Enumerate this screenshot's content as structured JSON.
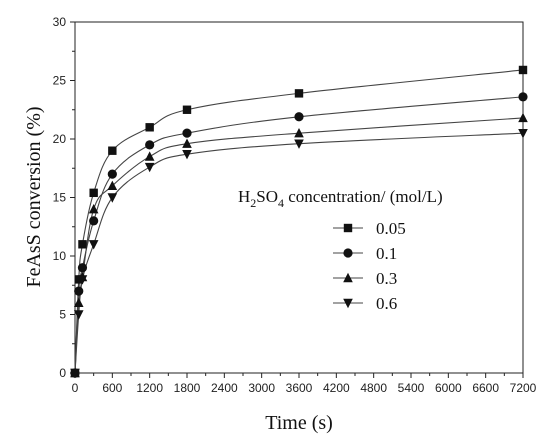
{
  "chart_data": {
    "type": "line",
    "xlabel": "Time (s)",
    "ylabel": "FeAsS conversion (%)",
    "xlim": [
      0,
      7200
    ],
    "ylim": [
      0,
      30
    ],
    "x_ticks": [
      "0",
      "600",
      "1200",
      "1800",
      "2400",
      "3000",
      "3600",
      "4200",
      "4800",
      "5400",
      "6000",
      "6600",
      "7200"
    ],
    "y_ticks": [
      "0",
      "5",
      "10",
      "15",
      "20",
      "25",
      "30"
    ],
    "grid": false,
    "legend": {
      "title_main": "H",
      "title_sub1": "2",
      "title_mid": "SO",
      "title_sub2": "4",
      "title_rest": " concentration/ (mol/L)",
      "placement": "center-right"
    },
    "series": [
      {
        "name": "0.05",
        "marker": "square",
        "x": [
          0,
          60,
          120,
          300,
          600,
          1200,
          1800,
          3600,
          7200
        ],
        "y": [
          0,
          8,
          11,
          15.4,
          19,
          21,
          22.5,
          23.9,
          25.9
        ]
      },
      {
        "name": "0.1",
        "marker": "circle",
        "x": [
          0,
          60,
          120,
          300,
          600,
          1200,
          1800,
          3600,
          7200
        ],
        "y": [
          0,
          7,
          9,
          13,
          17,
          19.5,
          20.5,
          21.9,
          23.6
        ]
      },
      {
        "name": "0.3",
        "marker": "triangle-up",
        "x": [
          0,
          60,
          120,
          300,
          600,
          1200,
          1800,
          3600,
          7200
        ],
        "y": [
          0,
          6,
          8.2,
          14,
          16,
          18.5,
          19.6,
          20.5,
          21.8
        ]
      },
      {
        "name": "0.6",
        "marker": "triangle-down",
        "x": [
          0,
          60,
          120,
          300,
          600,
          1200,
          1800,
          3600,
          7200
        ],
        "y": [
          0,
          5,
          8,
          11,
          15,
          17.6,
          18.7,
          19.6,
          20.5
        ]
      }
    ]
  }
}
